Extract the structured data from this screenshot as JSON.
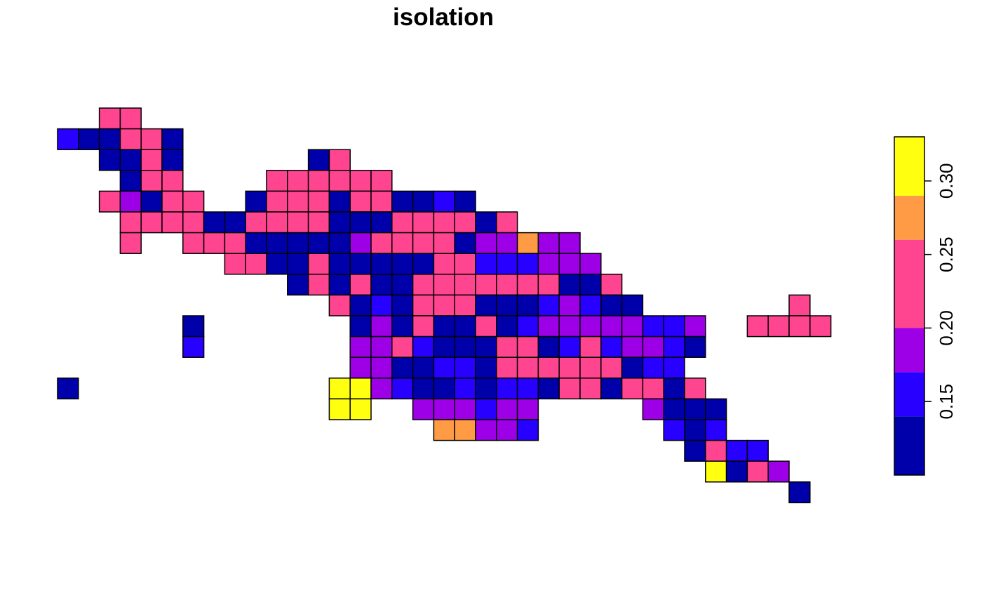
{
  "chart_data": {
    "type": "heatmap",
    "title": "isolation",
    "xlabel": "",
    "ylabel": "",
    "grid": false,
    "legend": {
      "type": "color-bar",
      "placement": "right"
    },
    "colors": [
      "#0000AA",
      "#2800FF",
      "#9D00E6",
      "#FF4590",
      "#FF9B44",
      "#FFFF0F"
    ],
    "breaks": [
      0.1,
      0.14,
      0.17,
      0.2,
      0.26,
      0.29,
      0.33
    ],
    "legend_ticks": [
      {
        "value": 0.15,
        "label": "0.15"
      },
      {
        "value": 0.2,
        "label": "0.20"
      },
      {
        "value": 0.25,
        "label": "0.25"
      },
      {
        "value": 0.3,
        "label": "0.30"
      }
    ],
    "grid_rows": [
      {
        "row": 0,
        "start": 2,
        "classes": [
          3,
          3
        ]
      },
      {
        "row": 1,
        "start": 0,
        "classes": [
          1,
          0,
          0,
          3,
          3,
          0
        ]
      },
      {
        "row": 2,
        "start": 2,
        "classes": [
          0,
          0,
          3,
          0
        ]
      },
      {
        "row": 2,
        "start": 12,
        "classes": [
          0,
          3
        ]
      },
      {
        "row": 3,
        "start": 3,
        "classes": [
          0,
          3,
          3
        ]
      },
      {
        "row": 3,
        "start": 10,
        "classes": [
          3,
          3,
          3,
          3,
          3,
          3
        ]
      },
      {
        "row": 4,
        "start": 2,
        "classes": [
          3,
          2,
          0,
          3,
          3
        ]
      },
      {
        "row": 4,
        "start": 9,
        "classes": [
          0,
          3,
          3,
          3,
          0,
          3,
          3,
          0,
          0,
          1,
          0
        ]
      },
      {
        "row": 5,
        "start": 3,
        "classes": [
          3,
          3,
          3,
          3,
          0,
          0,
          3,
          3,
          3,
          3,
          0,
          0,
          0,
          3,
          3,
          3,
          3,
          0,
          3
        ]
      },
      {
        "row": 6,
        "start": 3,
        "classes": [
          3
        ]
      },
      {
        "row": 6,
        "start": 6,
        "classes": [
          3,
          3,
          3,
          0,
          0,
          0,
          0,
          0,
          2,
          3,
          3,
          3,
          3,
          0,
          2,
          2,
          4,
          2,
          2
        ]
      },
      {
        "row": 7,
        "start": 8,
        "classes": [
          3,
          3,
          0,
          0,
          3,
          0,
          0,
          0,
          0,
          0,
          3,
          3,
          1,
          1,
          1,
          2,
          2,
          2
        ]
      },
      {
        "row": 8,
        "start": 11,
        "classes": [
          0,
          3,
          0,
          3,
          0,
          0,
          3,
          3,
          3,
          3,
          3,
          3,
          3,
          0,
          0,
          3
        ]
      },
      {
        "row": 9,
        "start": 13,
        "classes": [
          3,
          0,
          1,
          0,
          3,
          3,
          3,
          0,
          0,
          0,
          1,
          2,
          1,
          0,
          0
        ]
      },
      {
        "row": 9,
        "start": 35,
        "classes": [
          3
        ]
      },
      {
        "row": 10,
        "start": 6,
        "classes": [
          0
        ]
      },
      {
        "row": 10,
        "start": 14,
        "classes": [
          0,
          2,
          0,
          3,
          0,
          0,
          3,
          0,
          1,
          2,
          2,
          2,
          2,
          2,
          1,
          1,
          2
        ]
      },
      {
        "row": 10,
        "start": 33,
        "classes": [
          3,
          3,
          3,
          3
        ]
      },
      {
        "row": 11,
        "start": 6,
        "classes": [
          1
        ]
      },
      {
        "row": 11,
        "start": 14,
        "classes": [
          2,
          2,
          3,
          1,
          0,
          0,
          0,
          3,
          3,
          0,
          1,
          3,
          1,
          2,
          2,
          1,
          0
        ]
      },
      {
        "row": 12,
        "start": 14,
        "classes": [
          2,
          2,
          0,
          0,
          1,
          1,
          0,
          3,
          3,
          3,
          3,
          3,
          3,
          0,
          1,
          1
        ]
      },
      {
        "row": 13,
        "start": 0,
        "classes": [
          0
        ]
      },
      {
        "row": 13,
        "start": 13,
        "classes": [
          5,
          5,
          2,
          1,
          0,
          0,
          1,
          0,
          1,
          1,
          0,
          3,
          3,
          0,
          3,
          3,
          0,
          3
        ]
      },
      {
        "row": 14,
        "start": 13,
        "classes": [
          5,
          5
        ]
      },
      {
        "row": 14,
        "start": 17,
        "classes": [
          2,
          2,
          2,
          1,
          2,
          2
        ]
      },
      {
        "row": 14,
        "start": 28,
        "classes": [
          2,
          0,
          0,
          0
        ]
      },
      {
        "row": 15,
        "start": 18,
        "classes": [
          4,
          4,
          2,
          2,
          1
        ]
      },
      {
        "row": 15,
        "start": 29,
        "classes": [
          1,
          0,
          1
        ]
      },
      {
        "row": 16,
        "start": 30,
        "classes": [
          0,
          3,
          1,
          1
        ]
      },
      {
        "row": 17,
        "start": 31,
        "classes": [
          5,
          0,
          3,
          2
        ]
      },
      {
        "row": 18,
        "start": 35,
        "classes": [
          0
        ]
      }
    ]
  }
}
